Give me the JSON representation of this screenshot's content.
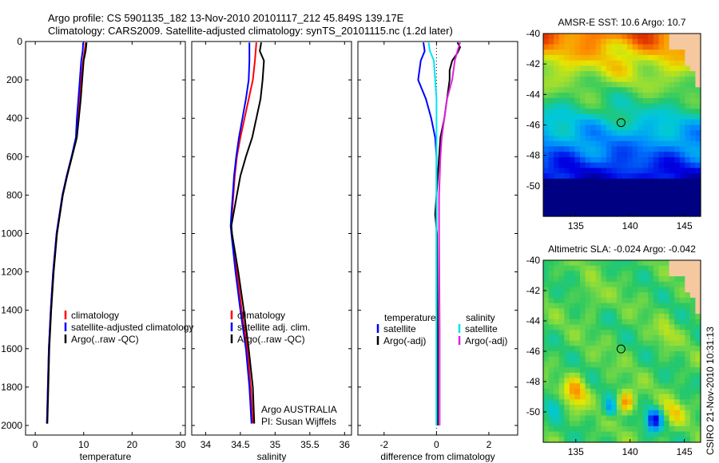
{
  "header": {
    "line1": "Argo profile: CS 5901135_182 13-Nov-2010 20101117_212 45.849S 139.17E",
    "line2": "Climatology: CARS2009. Satellite-adjusted climatology: synTS_20101115.nc (1.2d later)"
  },
  "side_label": "CSIRO 21-Nov-2010 10:31:13",
  "colors": {
    "climatology": "#ff0000",
    "satellite": "#0000ff",
    "argo": "#000000",
    "sal_satellite": "#00e5ee",
    "sal_argo": "#e020e0",
    "land": "#f5c8a0"
  },
  "chart_data": [
    {
      "type": "line",
      "id": "temperature",
      "xlabel": "temperature",
      "ylabel": "",
      "xlim": [
        -2,
        31
      ],
      "ylim": [
        2050,
        0
      ],
      "xticks": [
        0,
        10,
        20,
        30
      ],
      "yticks": [
        0,
        200,
        400,
        600,
        800,
        1000,
        1200,
        1400,
        1600,
        1800,
        2000
      ],
      "legend": [
        "climatology",
        "satellite-adjusted climatology",
        "Argo(..raw -QC)"
      ],
      "series": [
        {
          "name": "climatology",
          "color": "#ff0000",
          "y": [
            5,
            50,
            100,
            200,
            300,
            400,
            500,
            600,
            700,
            800,
            1000,
            1200,
            1400,
            1600,
            1800,
            1990
          ],
          "x": [
            10.4,
            10.2,
            9.9,
            9.5,
            9.1,
            8.8,
            8.5,
            7.5,
            6.5,
            5.6,
            4.4,
            3.7,
            3.2,
            2.8,
            2.6,
            2.4
          ]
        },
        {
          "name": "satellite-adjusted climatology",
          "color": "#0000ff",
          "y": [
            5,
            50,
            100,
            200,
            300,
            400,
            500,
            600,
            700,
            800,
            1000,
            1200,
            1400,
            1600,
            1800,
            1990
          ],
          "x": [
            9.9,
            9.8,
            9.5,
            9.2,
            8.9,
            8.6,
            8.4,
            7.5,
            6.5,
            5.6,
            4.4,
            3.7,
            3.2,
            2.8,
            2.6,
            2.4
          ]
        },
        {
          "name": "Argo(..raw -QC)",
          "color": "#000000",
          "y": [
            5,
            50,
            100,
            200,
            300,
            400,
            500,
            600,
            700,
            800,
            1000,
            1200,
            1400,
            1600,
            1800,
            1990
          ],
          "x": [
            10.6,
            10.4,
            10.0,
            9.7,
            9.4,
            9.0,
            8.6,
            7.6,
            6.6,
            5.7,
            4.5,
            3.8,
            3.3,
            2.9,
            2.7,
            2.5
          ]
        }
      ]
    },
    {
      "type": "line",
      "id": "salinity",
      "xlabel": "salinity",
      "ylabel": "",
      "xlim": [
        33.8,
        36.1
      ],
      "ylim": [
        2050,
        0
      ],
      "xticks": [
        34,
        34.5,
        35,
        35.5,
        36
      ],
      "yticks": [
        0,
        200,
        400,
        600,
        800,
        1000,
        1200,
        1400,
        1600,
        1800,
        2000
      ],
      "legend": [
        "climatology",
        "satellite adj. clim.",
        "Argo(..raw -QC)"
      ],
      "annotation": [
        "Argo AUSTRALIA",
        "PI: Susan Wijffels"
      ],
      "series": [
        {
          "name": "climatology",
          "color": "#ff0000",
          "y": [
            5,
            100,
            200,
            300,
            400,
            500,
            600,
            700,
            800,
            900,
            960,
            1000,
            1200,
            1400,
            1600,
            1800,
            1990
          ],
          "x": [
            34.73,
            34.71,
            34.68,
            34.62,
            34.56,
            34.5,
            34.45,
            34.42,
            34.4,
            34.38,
            34.37,
            34.38,
            34.45,
            34.52,
            34.6,
            34.65,
            34.68
          ]
        },
        {
          "name": "satellite adj. clim.",
          "color": "#0000ff",
          "y": [
            5,
            100,
            200,
            300,
            400,
            500,
            600,
            700,
            800,
            900,
            960,
            1000,
            1200,
            1400,
            1600,
            1800,
            1990
          ],
          "x": [
            34.63,
            34.63,
            34.62,
            34.58,
            34.53,
            34.48,
            34.44,
            34.41,
            34.39,
            34.37,
            34.36,
            34.37,
            34.43,
            34.5,
            34.58,
            34.63,
            34.66
          ]
        },
        {
          "name": "Argo(..raw -QC)",
          "color": "#000000",
          "y": [
            5,
            50,
            100,
            200,
            300,
            400,
            500,
            600,
            700,
            800,
            900,
            960,
            1000,
            1200,
            1400,
            1600,
            1800,
            1990
          ],
          "x": [
            34.8,
            34.78,
            34.84,
            34.82,
            34.79,
            34.73,
            34.67,
            34.58,
            34.5,
            34.45,
            34.4,
            34.37,
            34.38,
            34.47,
            34.55,
            34.62,
            34.68,
            34.7
          ]
        }
      ]
    },
    {
      "type": "line",
      "id": "difference",
      "xlabel": "difference from climatology",
      "ylabel": "",
      "xlim": [
        -3,
        3.1
      ],
      "ylim": [
        2050,
        0
      ],
      "xticks": [
        -2,
        0,
        2
      ],
      "yticks": [
        0,
        200,
        400,
        600,
        800,
        1000,
        1200,
        1400,
        1600,
        1800,
        2000
      ],
      "legend_temperature": {
        "title": "temperature",
        "items": [
          "satellite",
          "Argo(-adj)"
        ]
      },
      "legend_salinity": {
        "title": "salinity",
        "items": [
          "satellite",
          "Argo(-adj)"
        ]
      },
      "series": [
        {
          "name": "temperature satellite",
          "color": "#0000ff",
          "y": [
            5,
            50,
            100,
            200,
            300,
            400,
            500,
            600,
            800,
            1000,
            1500,
            2000
          ],
          "x": [
            -0.5,
            -0.45,
            -0.6,
            -0.7,
            -0.4,
            -0.2,
            -0.05,
            0,
            0,
            0,
            0,
            0
          ]
        },
        {
          "name": "temperature Argo(-adj)",
          "color": "#000000",
          "y": [
            5,
            30,
            60,
            100,
            150,
            200,
            300,
            400,
            500,
            600,
            800,
            900,
            1000,
            1500,
            2000
          ],
          "x": [
            0.8,
            0.9,
            0.8,
            0.6,
            0.5,
            0.5,
            0.4,
            0.3,
            0.15,
            0.1,
            0,
            -0.05,
            0.02,
            0.05,
            0.05
          ]
        },
        {
          "name": "salinity satellite",
          "color": "#00e5ee",
          "y": [
            5,
            50,
            100,
            200,
            300,
            400,
            500,
            600,
            800,
            1000,
            1500,
            2000
          ],
          "x": [
            -0.3,
            -0.25,
            -0.1,
            -0.05,
            0,
            0,
            0,
            0,
            0,
            0,
            0,
            0
          ]
        },
        {
          "name": "salinity Argo(-adj)",
          "color": "#e020e0",
          "y": [
            5,
            50,
            100,
            200,
            300,
            400,
            500,
            600,
            800,
            1000,
            1500,
            2000
          ],
          "x": [
            0.9,
            0.8,
            0.7,
            0.6,
            0.4,
            0.3,
            0.2,
            0.15,
            0.1,
            0.1,
            0.12,
            0.12
          ]
        }
      ]
    },
    {
      "type": "heatmap",
      "id": "sst",
      "title": "AMSR-E SST: 10.6 Argo: 10.7",
      "xlim": [
        132,
        146.5
      ],
      "ylim": [
        -52,
        -40
      ],
      "xticks": [
        135,
        140,
        145
      ],
      "yticks": [
        -40,
        -42,
        -44,
        -46,
        -48,
        -50
      ],
      "argo_position": [
        139.17,
        -45.849
      ]
    },
    {
      "type": "heatmap",
      "id": "sla",
      "title": "Altimetric SLA: -0.024 Argo: -0.042",
      "xlim": [
        132,
        146.5
      ],
      "ylim": [
        -52,
        -40
      ],
      "xticks": [
        135,
        140,
        145
      ],
      "yticks": [
        -40,
        -42,
        -44,
        -46,
        -48,
        -50
      ],
      "argo_position": [
        139.17,
        -45.849
      ]
    }
  ]
}
